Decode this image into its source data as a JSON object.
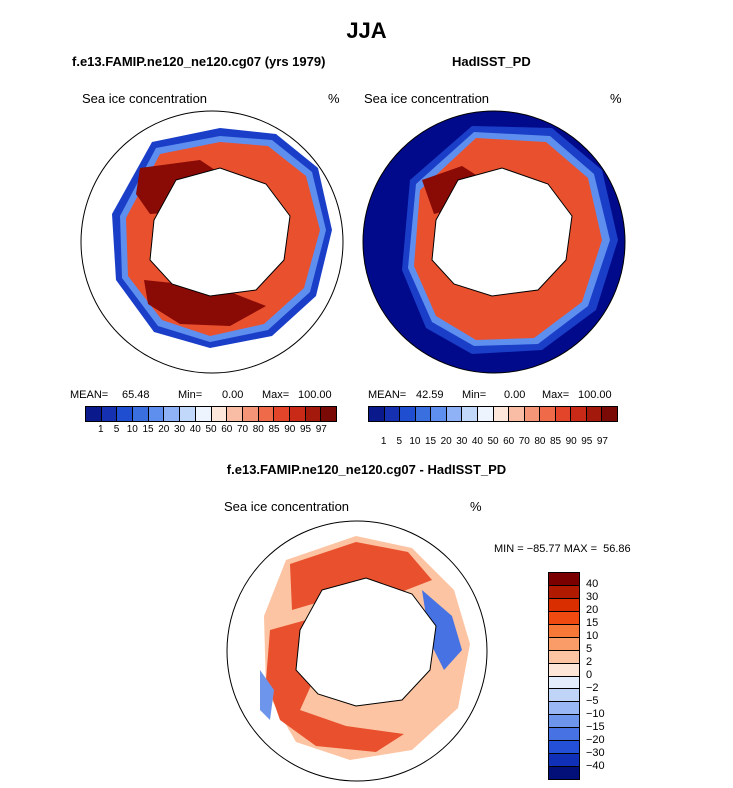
{
  "figure_title": "JJA",
  "panels": [
    {
      "title": "f.e13.FAMIP.ne120_ne120.cg07 (yrs 1979)",
      "variable": "Sea ice concentration",
      "units": "%",
      "stats": {
        "mean_label": "MEAN=",
        "mean": "65.48",
        "min_label": "Min=",
        "min": "0.00",
        "max_label": "Max=",
        "max": "100.00"
      }
    },
    {
      "title": "HadISST_PD",
      "variable": "Sea ice concentration",
      "units": "%",
      "stats": {
        "mean_label": "MEAN=",
        "mean": "42.59",
        "min_label": "Min=",
        "min": "0.00",
        "max_label": "Max=",
        "max": "100.00"
      }
    },
    {
      "title": "f.e13.FAMIP.ne120_ne120.cg07 - HadISST_PD",
      "variable": "Sea ice concentration",
      "units": "%",
      "minmax": "MIN = −85.77 MAX =  56.86"
    }
  ],
  "chart_data": [
    {
      "type": "heatmap",
      "title": "f.e13.FAMIP.ne120_ne120.cg07 (yrs 1979)",
      "projection": "south polar stereographic",
      "variable": "Sea ice concentration",
      "units": "%",
      "mean": 65.48,
      "min": 0.0,
      "max": 100.0,
      "colorbar_levels": [
        "1",
        "5",
        "10",
        "15",
        "20",
        "30",
        "40",
        "50",
        "60",
        "70",
        "80",
        "85",
        "90",
        "95",
        "97"
      ],
      "colorbar_colors": [
        "#0a1a8c",
        "#1530b0",
        "#1f4fd0",
        "#3a6fe0",
        "#5f8fee",
        "#8fb2f6",
        "#c2d8fb",
        "#eef4fe",
        "#fde6da",
        "#f9bda6",
        "#f49577",
        "#ee6a48",
        "#e2452a",
        "#c92a17",
        "#a31a0c",
        "#7a0a06"
      ],
      "colorbar_extremes": [
        "#0a1a8c",
        "#7a0a06"
      ]
    },
    {
      "type": "heatmap",
      "title": "HadISST_PD",
      "projection": "south polar stereographic",
      "variable": "Sea ice concentration",
      "units": "%",
      "mean": 42.59,
      "min": 0.0,
      "max": 100.0,
      "colorbar_levels": [
        "1",
        "5",
        "10",
        "15",
        "20",
        "30",
        "40",
        "50",
        "60",
        "70",
        "80",
        "85",
        "90",
        "95",
        "97"
      ]
    },
    {
      "type": "heatmap",
      "title": "f.e13.FAMIP.ne120_ne120.cg07 - HadISST_PD",
      "projection": "south polar stereographic",
      "variable": "Sea ice concentration",
      "units": "%",
      "min": -85.77,
      "max": 56.86,
      "colorbar_levels": [
        "40",
        "30",
        "20",
        "15",
        "10",
        "5",
        "2",
        "0",
        "−2",
        "−5",
        "−10",
        "−15",
        "−20",
        "−30",
        "−40"
      ],
      "colorbar_colors": [
        "#7a0000",
        "#b01a00",
        "#d82e00",
        "#f04a10",
        "#f87838",
        "#fa9c68",
        "#fcc4a2",
        "#fde6d8",
        "#e4edfb",
        "#c0d4f8",
        "#98b7f4",
        "#6e95ec",
        "#4672e4",
        "#2450d8",
        "#1030b8",
        "#04107a"
      ]
    }
  ],
  "colors": {
    "ocean_open": "#020a8c",
    "ice_edge": "#1a3ec8",
    "ice_mid": "#e8502e",
    "ice_core": "#8a0a06",
    "land": "#ffffff",
    "diff_pos": "#e8502e",
    "diff_neg": "#2850d8"
  }
}
